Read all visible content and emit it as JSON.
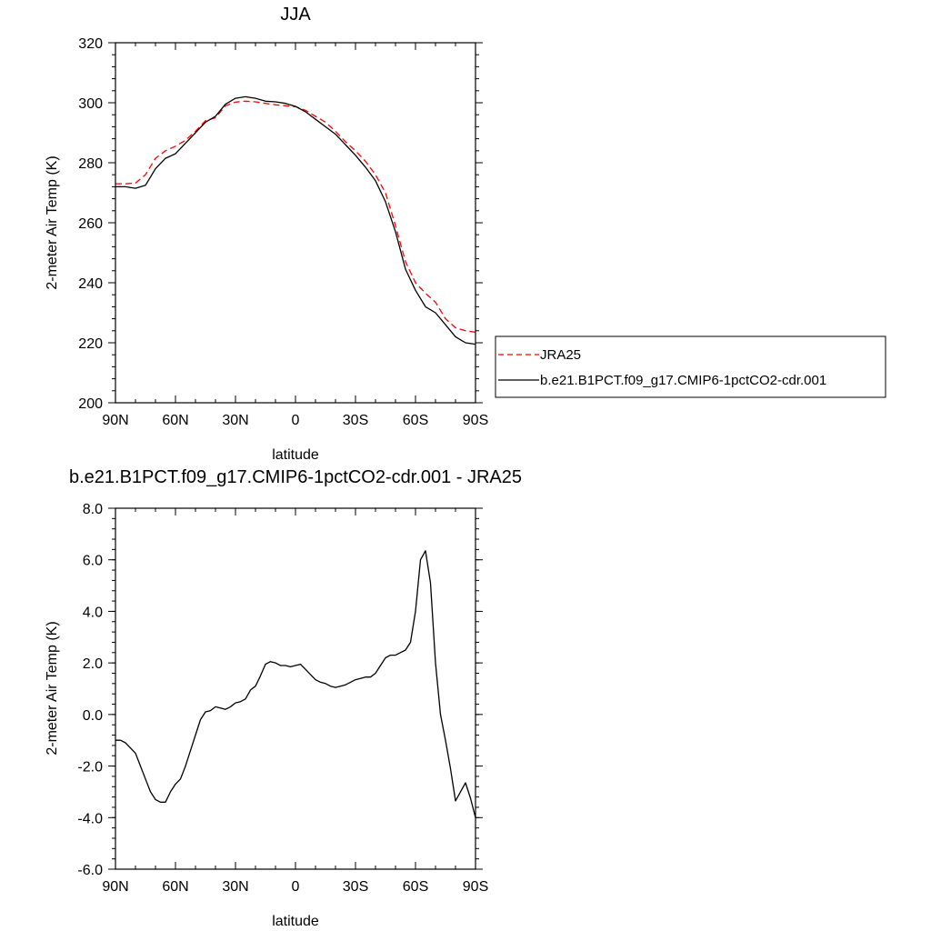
{
  "chart_data": [
    {
      "type": "line",
      "title": "JJA",
      "xlabel": "latitude",
      "ylabel": "2-meter Air Temp (K)",
      "xlim": [
        -90,
        90
      ],
      "ylim": [
        200,
        320
      ],
      "x_tick_values": [
        -90,
        -60,
        -30,
        0,
        30,
        60,
        90
      ],
      "x_tick_labels": [
        "90N",
        "60N",
        "30N",
        "0",
        "30S",
        "60S",
        "90S"
      ],
      "y_ticks": [
        200,
        220,
        240,
        260,
        280,
        300,
        320
      ],
      "grid": false,
      "legend_placement": "right",
      "series": [
        {
          "name": "JRA25",
          "color": "#ff0000",
          "dash": "dashed",
          "x": [
            -90,
            -85,
            -80,
            -75,
            -70,
            -65,
            -60,
            -55,
            -50,
            -45,
            -40,
            -35,
            -30,
            -25,
            -20,
            -15,
            -10,
            -5,
            0,
            5,
            10,
            15,
            20,
            25,
            30,
            35,
            40,
            45,
            50,
            55,
            60,
            65,
            70,
            75,
            80,
            85,
            90
          ],
          "values": [
            273.0,
            273.0,
            273.2,
            276.0,
            281.5,
            284.0,
            285.5,
            287.5,
            290.5,
            294.0,
            295.0,
            299.0,
            300.2,
            300.5,
            300.3,
            299.8,
            299.3,
            299.0,
            298.7,
            297.5,
            295.5,
            293.5,
            290.5,
            287.0,
            284.0,
            280.5,
            276.0,
            270.0,
            259.0,
            247.0,
            240.0,
            236.5,
            233.5,
            228.0,
            225.0,
            224.0,
            223.5
          ]
        },
        {
          "name": "b.e21.B1PCT.f09_g17.CMIP6-1pctCO2-cdr.001",
          "color": "#000000",
          "dash": "solid",
          "x": [
            -90,
            -85,
            -80,
            -75,
            -70,
            -65,
            -60,
            -55,
            -50,
            -45,
            -40,
            -35,
            -30,
            -25,
            -20,
            -15,
            -10,
            -5,
            0,
            5,
            10,
            15,
            20,
            25,
            30,
            35,
            40,
            45,
            50,
            55,
            60,
            65,
            70,
            75,
            80,
            85,
            90
          ],
          "values": [
            272.0,
            272.0,
            271.5,
            272.5,
            278.0,
            281.5,
            283.0,
            286.5,
            290.0,
            293.5,
            295.5,
            299.5,
            301.5,
            302.0,
            301.5,
            300.5,
            300.3,
            299.8,
            298.8,
            297.0,
            294.5,
            292.0,
            289.5,
            286.0,
            282.5,
            278.5,
            274.0,
            267.0,
            257.0,
            244.5,
            237.5,
            232.0,
            230.0,
            226.0,
            222.0,
            220.0,
            219.5
          ]
        }
      ]
    },
    {
      "type": "line",
      "title": "b.e21.B1PCT.f09_g17.CMIP6-1pctCO2-cdr.001 - JRA25",
      "xlabel": "latitude",
      "ylabel": "2-meter Air Temp (K)",
      "xlim": [
        -90,
        90
      ],
      "ylim": [
        -6,
        8
      ],
      "x_tick_values": [
        -90,
        -60,
        -30,
        0,
        30,
        60,
        90
      ],
      "x_tick_labels": [
        "90N",
        "60N",
        "30N",
        "0",
        "30S",
        "60S",
        "90S"
      ],
      "y_ticks": [
        -6,
        -4,
        -2,
        0,
        2,
        4,
        6,
        8
      ],
      "y_tick_labels": [
        "-6.0",
        "-4.0",
        "-2.0",
        "0.0",
        "2.0",
        "4.0",
        "6.0",
        "8.0"
      ],
      "grid": false,
      "series": [
        {
          "color": "#000000",
          "dash": "solid",
          "x": [
            -90,
            -87.5,
            -85,
            -80,
            -77.5,
            -75,
            -72.5,
            -70,
            -67.5,
            -65,
            -62.5,
            -60,
            -57.5,
            -55,
            -52.5,
            -50,
            -47.5,
            -45,
            -42.5,
            -40,
            -37.5,
            -35,
            -32.5,
            -30,
            -27.5,
            -25,
            -22.5,
            -20,
            -17.5,
            -15,
            -12.5,
            -10,
            -7.5,
            -5,
            -2.5,
            0,
            2.5,
            5,
            7.5,
            10,
            12.5,
            15,
            17.5,
            20,
            22.5,
            25,
            27.5,
            30,
            32.5,
            35,
            37.5,
            40,
            42.5,
            45,
            47.5,
            50,
            52.5,
            55,
            57.5,
            60,
            62.5,
            65,
            67.5,
            70,
            72.5,
            75,
            77.5,
            80,
            82.5,
            85,
            87.5,
            90
          ],
          "values": [
            -1.0,
            -1.0,
            -1.1,
            -1.5,
            -2.0,
            -2.5,
            -3.0,
            -3.3,
            -3.4,
            -3.4,
            -3.0,
            -2.7,
            -2.5,
            -2.0,
            -1.4,
            -0.8,
            -0.2,
            0.1,
            0.15,
            0.3,
            0.25,
            0.2,
            0.3,
            0.45,
            0.5,
            0.6,
            0.95,
            1.1,
            1.5,
            1.95,
            2.05,
            2.0,
            1.9,
            1.9,
            1.85,
            1.9,
            1.95,
            1.75,
            1.55,
            1.35,
            1.25,
            1.2,
            1.1,
            1.05,
            1.1,
            1.15,
            1.25,
            1.35,
            1.4,
            1.45,
            1.45,
            1.6,
            1.9,
            2.2,
            2.3,
            2.3,
            2.4,
            2.5,
            2.8,
            4.0,
            6.0,
            6.35,
            5.1,
            2.0,
            0.0,
            -1.0,
            -2.1,
            -3.35,
            -3.0,
            -2.65,
            -3.25,
            -4.0
          ]
        }
      ]
    }
  ]
}
